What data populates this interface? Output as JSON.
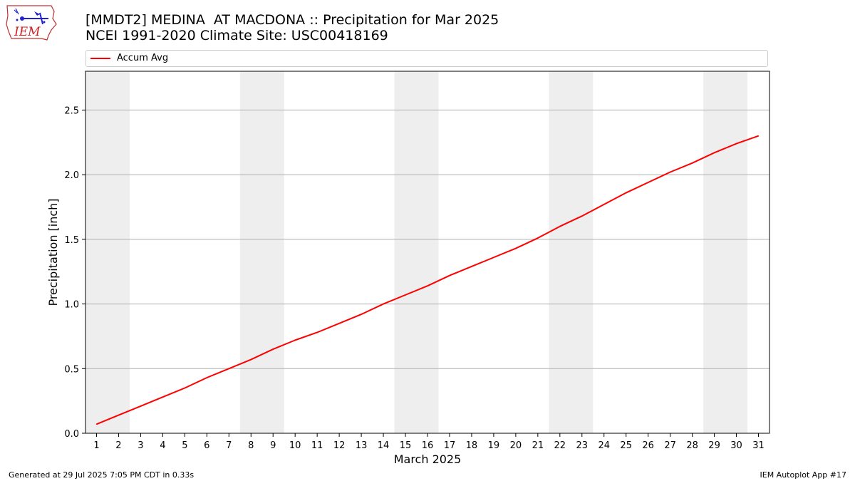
{
  "header": {
    "logo_text": "IEM",
    "title_line1": "[MMDT2] MEDINA  AT MACDONA :: Precipitation for Mar 2025",
    "title_line2": "NCEI 1991-2020 Climate Site: USC00418169"
  },
  "footer": {
    "left": "Generated at 29 Jul 2025 7:05 PM CDT in 0.33s",
    "right": "IEM Autoplot App #17"
  },
  "colors": {
    "line": "#ff0000",
    "weekend_band": "#eeeeee",
    "grid": "#b0b0b0"
  },
  "chart_data": {
    "type": "line",
    "title": "[MMDT2] MEDINA  AT MACDONA :: Precipitation for Mar 2025",
    "subtitle": "NCEI 1991-2020 Climate Site: USC00418169",
    "xlabel": "March 2025",
    "ylabel": "Precipitation [inch]",
    "xlim": [
      0.5,
      31.5
    ],
    "ylim": [
      0,
      2.8
    ],
    "yticks": [
      0.0,
      0.5,
      1.0,
      1.5,
      2.0,
      2.5
    ],
    "ytick_labels": [
      "0.0",
      "0.5",
      "1.0",
      "1.5",
      "2.0",
      "2.5"
    ],
    "xticks": [
      1,
      2,
      3,
      4,
      5,
      6,
      7,
      8,
      9,
      10,
      11,
      12,
      13,
      14,
      15,
      16,
      17,
      18,
      19,
      20,
      21,
      22,
      23,
      24,
      25,
      26,
      27,
      28,
      29,
      30,
      31
    ],
    "xtick_labels": [
      "1",
      "2",
      "3",
      "4",
      "5",
      "6",
      "7",
      "8",
      "9",
      "10",
      "11",
      "12",
      "13",
      "14",
      "15",
      "16",
      "17",
      "18",
      "19",
      "20",
      "21",
      "22",
      "23",
      "24",
      "25",
      "26",
      "27",
      "28",
      "29",
      "30",
      "31"
    ],
    "grid": "horizontal",
    "legend_position": "top",
    "weekend_bands": [
      [
        0.5,
        2.5
      ],
      [
        7.5,
        9.5
      ],
      [
        14.5,
        16.5
      ],
      [
        21.5,
        23.5
      ],
      [
        28.5,
        30.5
      ]
    ],
    "series": [
      {
        "name": "Accum Avg",
        "color": "#ff0000",
        "x": [
          1,
          2,
          3,
          4,
          5,
          6,
          7,
          8,
          9,
          10,
          11,
          12,
          13,
          14,
          15,
          16,
          17,
          18,
          19,
          20,
          21,
          22,
          23,
          24,
          25,
          26,
          27,
          28,
          29,
          30,
          31
        ],
        "values": [
          0.07,
          0.14,
          0.21,
          0.28,
          0.35,
          0.43,
          0.5,
          0.57,
          0.65,
          0.72,
          0.78,
          0.85,
          0.92,
          1.0,
          1.07,
          1.14,
          1.22,
          1.29,
          1.36,
          1.43,
          1.51,
          1.6,
          1.68,
          1.77,
          1.86,
          1.94,
          2.02,
          2.09,
          2.17,
          2.24,
          2.3
        ]
      }
    ]
  }
}
